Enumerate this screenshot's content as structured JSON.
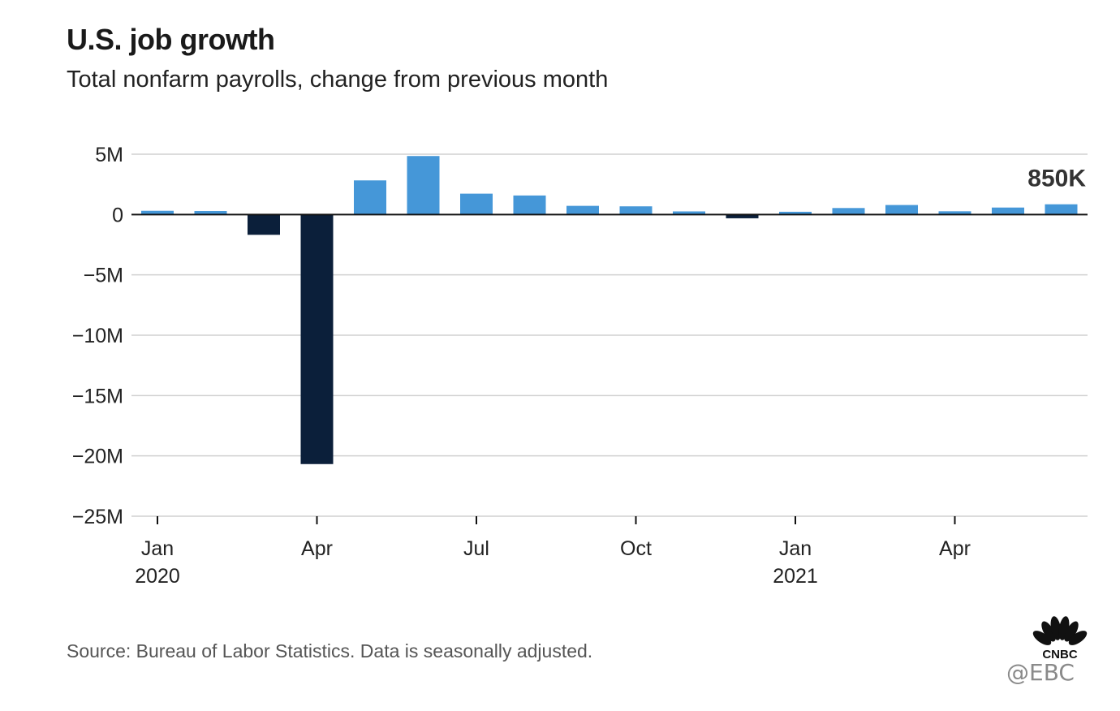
{
  "header": {
    "title": "U.S. job growth",
    "subtitle": "Total nonfarm payrolls, change from previous month"
  },
  "footer": {
    "source": "Source: Bureau of Labor Statistics. Data is seasonally adjusted.",
    "watermark": "@EBC",
    "logo_text": "CNBC"
  },
  "colors": {
    "positive": "#4597d8",
    "negative": "#0b1f3a",
    "grid": "#d0d0d0",
    "axis": "#111111"
  },
  "chart_data": {
    "type": "bar",
    "title": "U.S. job growth",
    "subtitle": "Total nonfarm payrolls, change from previous month",
    "xlabel": "",
    "ylabel": "",
    "unit": "jobs (millions)",
    "ylim": [
      -25,
      5
    ],
    "yticks": [
      5,
      0,
      -5,
      -10,
      -15,
      -20,
      -25
    ],
    "ytick_labels": [
      "5M",
      "0",
      "−5M",
      "−10M",
      "−15M",
      "−20M",
      "−25M"
    ],
    "grid": true,
    "categories": [
      "Jan 2020",
      "Feb 2020",
      "Mar 2020",
      "Apr 2020",
      "May 2020",
      "Jun 2020",
      "Jul 2020",
      "Aug 2020",
      "Sep 2020",
      "Oct 2020",
      "Nov 2020",
      "Dec 2020",
      "Jan 2021",
      "Feb 2021",
      "Mar 2021",
      "Apr 2021",
      "May 2021",
      "Jun 2021"
    ],
    "values": [
      0.31,
      0.29,
      -1.68,
      -20.68,
      2.83,
      4.85,
      1.73,
      1.58,
      0.72,
      0.68,
      0.26,
      -0.31,
      0.23,
      0.54,
      0.79,
      0.27,
      0.58,
      0.85
    ],
    "x_tick_labels": [
      {
        "index": 0,
        "month": "Jan",
        "year": "2020"
      },
      {
        "index": 3,
        "month": "Apr",
        "year": ""
      },
      {
        "index": 6,
        "month": "Jul",
        "year": ""
      },
      {
        "index": 9,
        "month": "Oct",
        "year": ""
      },
      {
        "index": 12,
        "month": "Jan",
        "year": "2021"
      },
      {
        "index": 15,
        "month": "Apr",
        "year": ""
      }
    ],
    "annotations": [
      {
        "index": 17,
        "text": "850K"
      }
    ]
  }
}
